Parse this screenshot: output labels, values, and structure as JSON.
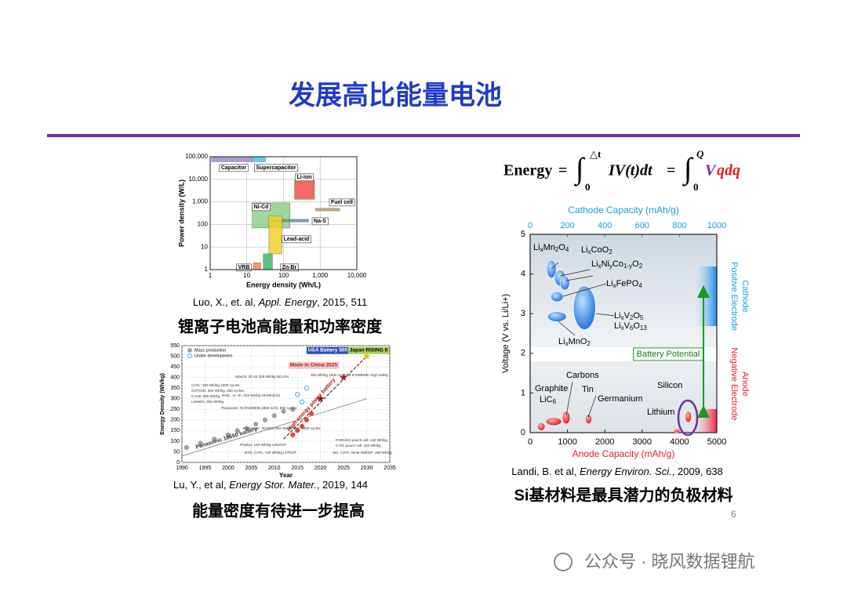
{
  "title": "发展高比能量电池",
  "ragone": {
    "type": "ragone",
    "xlabel": "Energy density (Wh/L)",
    "ylabel": "Power density (W/L)",
    "xlim": [
      1,
      10000
    ],
    "ylim": [
      1,
      100000
    ],
    "log_scale": true,
    "grid": true,
    "xticks": [
      1,
      10,
      100,
      {
        "value": 1000,
        "label": "1,000"
      },
      {
        "value": 10000,
        "label": "10,000"
      }
    ],
    "yticks": [
      1,
      10,
      100,
      {
        "value": 1000,
        "label": "1,000"
      },
      {
        "value": 10000,
        "label": "10,000"
      },
      {
        "value": 100000,
        "label": "100,000"
      }
    ],
    "regions": [
      {
        "name": "Capacitor",
        "color": "#a08ad0",
        "x": [
          1.1,
          14
        ],
        "y": [
          60000,
          100000
        ]
      },
      {
        "name": "Supercapacitor",
        "color": "#4fc3e8",
        "x": [
          14,
          32
        ],
        "y": [
          60000,
          100000
        ]
      },
      {
        "name": "Li-ion",
        "color": "#f0504a",
        "x": [
          200,
          700
        ],
        "y": [
          1300,
          9000
        ]
      },
      {
        "name": "Fuel cell",
        "color": "#b8a060",
        "x": [
          750,
          3400
        ],
        "y": [
          400,
          520
        ]
      },
      {
        "name": "Ni-Cd",
        "color": "#8fd08a",
        "x": [
          14,
          150
        ],
        "y": [
          70,
          900
        ]
      },
      {
        "name": "Na-S",
        "color": "#6f88a8",
        "x": [
          45,
          480
        ],
        "y": [
          130,
          170
        ]
      },
      {
        "name": "Lead-acid",
        "color": "#f2d02a",
        "x": [
          40,
          90
        ],
        "y": [
          5,
          240
        ]
      },
      {
        "name": "VRB",
        "color": "#f08a50",
        "x": [
          15,
          24
        ],
        "y": [
          1,
          2
        ]
      },
      {
        "name": "Zn-Br",
        "color": "#3fb86a",
        "x": [
          28,
          50
        ],
        "y": [
          1,
          5
        ]
      }
    ]
  },
  "ragone_caption": {
    "authors": "Luo, X., et. al, ",
    "journal": "Appl. Energy",
    "rest": ", 2015, 511"
  },
  "ragone_heading": "锂离子电池高能量和功率密度",
  "roadmap": {
    "type": "scatter",
    "xlabel": "Year",
    "ylabel": "Energy Density (Wh/kg)",
    "xlim": [
      1990,
      2035
    ],
    "ylim": [
      0,
      550
    ],
    "grid": true,
    "xticks": [
      1990,
      1995,
      2000,
      2005,
      2010,
      2015,
      2020,
      2025,
      2030,
      2035
    ],
    "yticks": [
      0,
      50,
      100,
      150,
      200,
      250,
      300,
      350,
      400,
      450,
      500,
      550
    ],
    "series": [
      {
        "name": "Mass production",
        "color": "#a0a0a0",
        "x": [
          1991,
          1994,
          1997,
          2000,
          2002,
          2004,
          2006,
          2008,
          2010,
          2012,
          2014
        ],
        "values": [
          70,
          90,
          110,
          130,
          150,
          160,
          180,
          200,
          220,
          240,
          250
        ]
      },
      {
        "name": "Under development",
        "color": "#4aa0e0",
        "x": [
          2015,
          2016,
          2017
        ],
        "values": [
          320,
          285,
          350
        ]
      },
      {
        "name": "High energy power battery",
        "color": "#e04848",
        "x": [
          2014,
          2015,
          2016,
          2017,
          2018
        ],
        "values": [
          130,
          150,
          170,
          200,
          230
        ]
      }
    ],
    "targets": [
      {
        "name": "Made in China 2025",
        "color": "#8b1a1a",
        "x": 2020,
        "value": 300
      },
      {
        "name": "",
        "color": "#a02020",
        "x": 2025,
        "value": 400
      },
      {
        "name": "",
        "color": "#e8c020",
        "x": 2030,
        "value": 500
      }
    ],
    "boxes": [
      "USA Battery 500",
      "Japan RISING II",
      "Made in China 2025"
    ],
    "line_labels": [
      "Panasonic 18650 battery",
      "High energy power battery"
    ],
    "annotations": [
      "Hitachi: 30 Ah 335 Wh/kg NCA/Si",
      "NIOL: 11 Ah, 319 Wh/kg NCM532/Si",
      "CATL: 309 Wh/kg,1000 cycles",
      "GOTION: 300 Wh/kg, 400 cycles",
      "CALB: 300 Wh/kg",
      "LISHEN: 305 Wh/kg",
      "Panasonic: NCR18650B 3350 mAh, 900 cycles",
      "Panasonic: NCR21700A 5000 mAh, 1000 cycles",
      "Phylion: 140 Wh/kg LMO/GP",
      "BYD, CATL: 140 Wh/kg LFP/GP",
      "FARASIS pouch cell: 240 Wh/kg",
      "CATL pouch cell: 240 Wh/kg",
      "SKI, CATL: NCM 250/GP: 160 Wh/kg",
      "300 Wh/kg 1500 cycles 0.8 RMB/Wh High safety"
    ]
  },
  "roadmap_caption": {
    "authors": "Lu, Y., et al, ",
    "journal": "Energy Stor. Mater.",
    "rest": ", 2019, 144"
  },
  "roadmap_heading": "能量密度有待进一步提高",
  "equation": {
    "lhs": "Energy",
    "eq": "=",
    "integral": "∫",
    "lower1": "0",
    "upper1": "△t",
    "integrand1": "IV(t)dt",
    "lower2": "0",
    "upper2": "Q",
    "v": "V",
    "qdq": "qdq"
  },
  "voltage": {
    "type": "scatter",
    "ylabel": "Voltage (V vs. Li/Li+)",
    "xlabel": "Anode Capacity (mAh/g)",
    "x2label": "Cathode Capacity (mAh/g)",
    "ylim": [
      0,
      5
    ],
    "yticks": [
      0,
      1,
      2,
      3,
      4,
      5
    ],
    "xlim": [
      0,
      5000
    ],
    "xticks": [
      0,
      1000,
      2000,
      3000,
      4000,
      5000
    ],
    "x2lim": [
      0,
      1000
    ],
    "x2ticks": [
      0,
      200,
      400,
      600,
      800,
      1000
    ],
    "cathode": [
      {
        "names": [
          "LixMn2O4"
        ],
        "x": [
          89,
          139
        ],
        "y": [
          3.9,
          4.35
        ]
      },
      {
        "names": [
          "LixCoO2"
        ],
        "x": [
          131,
          190
        ],
        "y": [
          3.7,
          4.1
        ]
      },
      {
        "names": [
          "LixNiyCo1-yO2"
        ],
        "x": [
          160,
          211
        ],
        "y": [
          3.6,
          3.95
        ]
      },
      {
        "names": [
          "LixFePO4"
        ],
        "x": [
          110,
          177
        ],
        "y": [
          3.3,
          3.55
        ]
      },
      {
        "names": [
          "LixV2O5",
          "LixV6O13"
        ],
        "x": [
          232,
          350
        ],
        "y": [
          2.6,
          3.7
        ]
      },
      {
        "names": [
          "LixMnO2"
        ],
        "x": [
          93,
          194
        ],
        "y": [
          2.8,
          3.05
        ]
      }
    ],
    "anode": [
      {
        "names": [
          "Graphite",
          "LiC6"
        ],
        "x": [
          190,
          400
        ],
        "y": [
          0.05,
          0.25
        ]
      },
      {
        "names": [
          "Carbons"
        ],
        "x": [
          420,
          840
        ],
        "y": [
          0.18,
          0.38
        ]
      },
      {
        "names": [
          "Tin"
        ],
        "x": [
          860,
          1070
        ],
        "y": [
          0.22,
          0.54
        ]
      },
      {
        "names": [
          "Germanium"
        ],
        "x": [
          1480,
          1650
        ],
        "y": [
          0.22,
          0.46
        ]
      },
      {
        "names": [
          "Silicon"
        ],
        "x": [
          4150,
          4320
        ],
        "y": [
          0.26,
          0.54
        ]
      },
      {
        "names": [
          "Lithium"
        ],
        "x": [
          3840,
          4010
        ],
        "y": [
          0,
          0.1
        ]
      }
    ],
    "battery_potential": "Battery Potential",
    "cathode_label": [
      "Cathode",
      "Positive Electrode"
    ],
    "anode_label": [
      "Anode",
      "Negative Electrode"
    ]
  },
  "voltage_caption": {
    "authors": "Landi, B. et al, ",
    "journal": "Energy Environ. Sci.",
    "rest": ", 2009, 638"
  },
  "voltage_heading": "Si基材料是最具潜力的负极材料",
  "page_number": "6",
  "watermark": "公众号 · 晓风数据锂航"
}
